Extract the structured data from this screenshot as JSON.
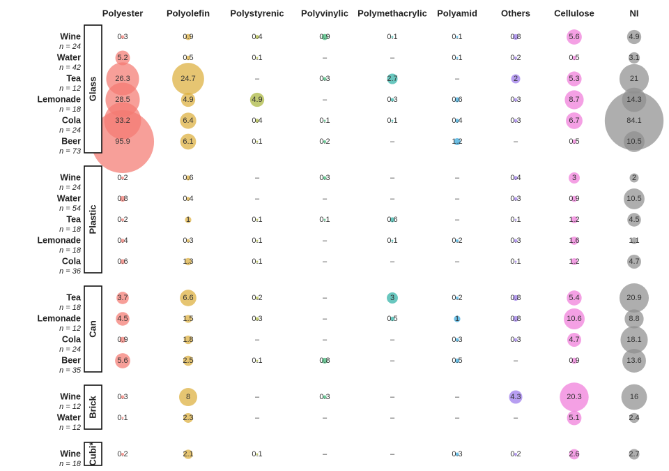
{
  "chart_data": {
    "type": "bubble-table",
    "missing_label": "–",
    "columns": [
      {
        "name": "Polyester",
        "color": "#f47a72"
      },
      {
        "name": "Polyolefin",
        "color": "#dcae3c"
      },
      {
        "name": "Polystyrenic",
        "color": "#a9b53c"
      },
      {
        "name": "Polyvinylic",
        "color": "#3ab874"
      },
      {
        "name": "Polymethacrylic",
        "color": "#2fb1a6"
      },
      {
        "name": "Polyamid",
        "color": "#35a7dc"
      },
      {
        "name": "Others",
        "color": "#9b78ec"
      },
      {
        "name": "Cellulose",
        "color": "#f07bd9"
      },
      {
        "name": "NI",
        "color": "#8f8f8f"
      }
    ],
    "groups": [
      {
        "name": "Glass",
        "rows": [
          {
            "label": "Wine",
            "n": "n = 24",
            "values": [
              0.3,
              0.9,
              0.4,
              0.9,
              0.1,
              0.1,
              0.8,
              5.6,
              4.9
            ]
          },
          {
            "label": "Water",
            "n": "n = 42",
            "values": [
              5.2,
              0.5,
              0.1,
              null,
              null,
              0.1,
              0.2,
              0.5,
              3.1
            ]
          },
          {
            "label": "Tea",
            "n": "n = 12",
            "values": [
              26.3,
              24.7,
              null,
              0.3,
              2.7,
              null,
              2,
              5.3,
              21
            ]
          },
          {
            "label": "Lemonade",
            "n": "n = 18",
            "values": [
              28.5,
              4.9,
              4.9,
              null,
              0.3,
              0.6,
              0.3,
              8.7,
              14.3
            ]
          },
          {
            "label": "Cola",
            "n": "n = 24",
            "values": [
              33.2,
              6.4,
              0.4,
              0.1,
              0.1,
              0.4,
              0.3,
              6.7,
              84.1
            ]
          },
          {
            "label": "Beer",
            "n": "n = 73",
            "values": [
              95.9,
              6.1,
              0.1,
              0.2,
              null,
              1.2,
              null,
              0.5,
              10.5
            ]
          }
        ]
      },
      {
        "name": "Plastic",
        "rows": [
          {
            "label": "Wine",
            "n": "n = 24",
            "values": [
              0.2,
              0.6,
              null,
              0.3,
              null,
              null,
              0.4,
              3,
              2
            ]
          },
          {
            "label": "Water",
            "n": "n = 54",
            "values": [
              0.8,
              0.4,
              null,
              null,
              null,
              null,
              0.3,
              0.9,
              10.5
            ]
          },
          {
            "label": "Tea",
            "n": "n = 18",
            "values": [
              0.2,
              1,
              0.1,
              0.1,
              0.6,
              null,
              0.1,
              1.2,
              4.5
            ]
          },
          {
            "label": "Lemonade",
            "n": "n = 18",
            "values": [
              0.4,
              0.3,
              0.1,
              null,
              0.1,
              0.2,
              0.3,
              1.6,
              1.1
            ]
          },
          {
            "label": "Cola",
            "n": "n = 36",
            "values": [
              0.6,
              1.3,
              0.1,
              null,
              null,
              null,
              0.1,
              1.2,
              4.7
            ]
          }
        ]
      },
      {
        "name": "Can",
        "rows": [
          {
            "label": "Tea",
            "n": "n = 18",
            "values": [
              3.7,
              6.6,
              0.2,
              null,
              3,
              0.2,
              0.8,
              5.4,
              20.9
            ]
          },
          {
            "label": "Lemonade",
            "n": "n = 12",
            "values": [
              4.5,
              1.5,
              0.3,
              null,
              0.5,
              1,
              0.8,
              10.6,
              8.8
            ]
          },
          {
            "label": "Cola",
            "n": "n = 24",
            "values": [
              0.9,
              1.8,
              null,
              null,
              null,
              0.3,
              0.3,
              4.7,
              18.1
            ]
          },
          {
            "label": "Beer",
            "n": "n = 35",
            "values": [
              5.6,
              2.5,
              0.1,
              0.8,
              null,
              0.5,
              null,
              0.9,
              13.6
            ]
          }
        ]
      },
      {
        "name": "Brick",
        "rows": [
          {
            "label": "Wine",
            "n": "n = 12",
            "values": [
              0.3,
              8,
              null,
              0.3,
              null,
              null,
              4.3,
              20.3,
              16
            ]
          },
          {
            "label": "Water",
            "n": "n = 12",
            "values": [
              0.1,
              2.3,
              null,
              null,
              null,
              null,
              null,
              5.1,
              2.4
            ]
          }
        ]
      },
      {
        "name": "Cubi*",
        "rows": [
          {
            "label": "Wine",
            "n": "n = 18",
            "values": [
              0.2,
              2.1,
              0.1,
              null,
              null,
              0.3,
              0.2,
              2.6,
              2.7
            ]
          }
        ]
      }
    ]
  }
}
